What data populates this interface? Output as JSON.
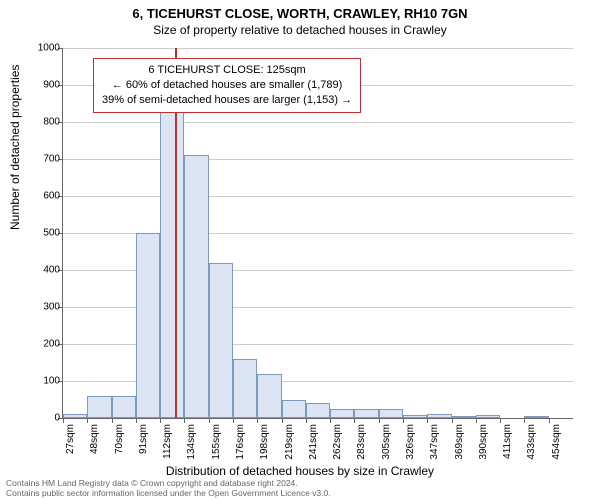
{
  "title_main": "6, TICEHURST CLOSE, WORTH, CRAWLEY, RH10 7GN",
  "title_sub": "Size of property relative to detached houses in Crawley",
  "y_axis_label": "Number of detached properties",
  "x_axis_label": "Distribution of detached houses by size in Crawley",
  "chart": {
    "type": "histogram",
    "bar_fill": "#dbe5f4",
    "bar_border": "#7f98bd",
    "grid_color": "#cccccc",
    "background_color": "#ffffff",
    "marker_color": "#c03030",
    "ylim": [
      0,
      1000
    ],
    "ytick_step": 100,
    "bins": [
      {
        "label": "27sqm",
        "value": 10
      },
      {
        "label": "48sqm",
        "value": 60
      },
      {
        "label": "70sqm",
        "value": 60
      },
      {
        "label": "91sqm",
        "value": 500
      },
      {
        "label": "112sqm",
        "value": 900
      },
      {
        "label": "134sqm",
        "value": 710
      },
      {
        "label": "155sqm",
        "value": 420
      },
      {
        "label": "176sqm",
        "value": 160
      },
      {
        "label": "198sqm",
        "value": 120
      },
      {
        "label": "219sqm",
        "value": 50
      },
      {
        "label": "241sqm",
        "value": 40
      },
      {
        "label": "262sqm",
        "value": 25
      },
      {
        "label": "283sqm",
        "value": 25
      },
      {
        "label": "305sqm",
        "value": 25
      },
      {
        "label": "326sqm",
        "value": 8
      },
      {
        "label": "347sqm",
        "value": 12
      },
      {
        "label": "369sqm",
        "value": 5
      },
      {
        "label": "390sqm",
        "value": 8
      },
      {
        "label": "411sqm",
        "value": 0
      },
      {
        "label": "433sqm",
        "value": 5
      },
      {
        "label": "454sqm",
        "value": 0
      }
    ],
    "marker_bin_index": 4.6,
    "annotation": {
      "line1": "6 TICEHURST CLOSE: 125sqm",
      "line2": "← 60% of detached houses are smaller (1,789)",
      "line3": "39% of semi-detached houses are larger (1,153) →"
    }
  },
  "footer_line1": "Contains HM Land Registry data © Crown copyright and database right 2024.",
  "footer_line2": "Contains public sector information licensed under the Open Government Licence v3.0."
}
